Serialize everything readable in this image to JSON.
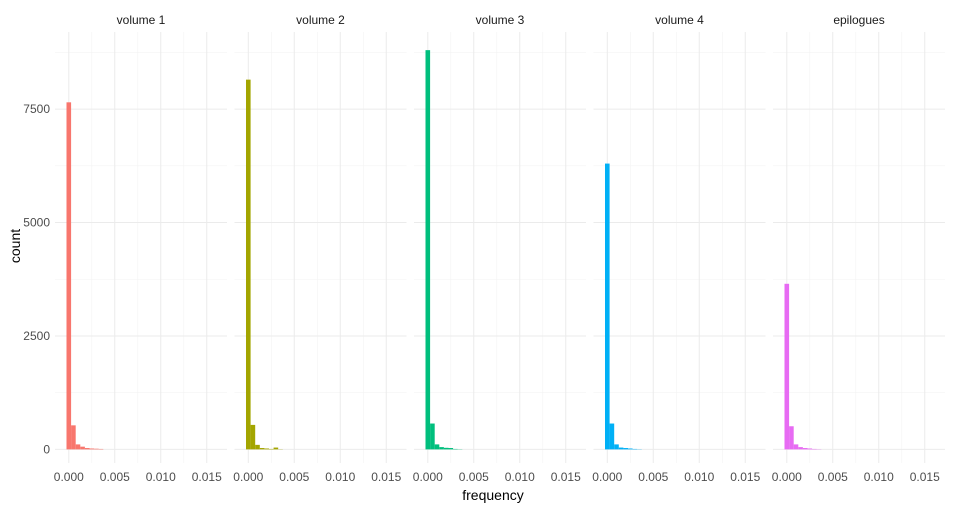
{
  "chart_data": {
    "type": "bar",
    "subtype": "faceted-histogram",
    "xlabel": "frequency",
    "ylabel": "count",
    "xlim": [
      -0.0015,
      0.0172
    ],
    "ylim": [
      -300,
      9200
    ],
    "x_ticks": [
      0.0,
      0.005,
      0.01,
      0.015
    ],
    "x_tick_labels": [
      "0.000",
      "0.005",
      "0.010",
      "0.015"
    ],
    "y_ticks": [
      0,
      2500,
      5000,
      7500
    ],
    "y_tick_labels": [
      "0",
      "2500",
      "5000",
      "7500"
    ],
    "bin_width": 0.0005,
    "bin_starts": [
      -0.00025,
      0.00025,
      0.00075,
      0.00125,
      0.00175,
      0.00225,
      0.00275,
      0.00325
    ],
    "grid": true,
    "legend": "none",
    "facets": [
      {
        "name": "volume 1",
        "color": "#F8766D",
        "counts": [
          7650,
          530,
          110,
          60,
          30,
          20,
          15,
          10
        ]
      },
      {
        "name": "volume 2",
        "color": "#A3A500",
        "counts": [
          8150,
          540,
          100,
          30,
          20,
          10,
          40,
          5
        ]
      },
      {
        "name": "volume 3",
        "color": "#00BF7D",
        "counts": [
          8800,
          570,
          110,
          50,
          35,
          30,
          10,
          5
        ]
      },
      {
        "name": "volume 4",
        "color": "#00B0F6",
        "counts": [
          6300,
          570,
          110,
          40,
          30,
          20,
          10,
          5
        ]
      },
      {
        "name": "epilogues",
        "color": "#E76BF3",
        "counts": [
          3650,
          510,
          110,
          50,
          30,
          20,
          10,
          5
        ]
      }
    ]
  }
}
